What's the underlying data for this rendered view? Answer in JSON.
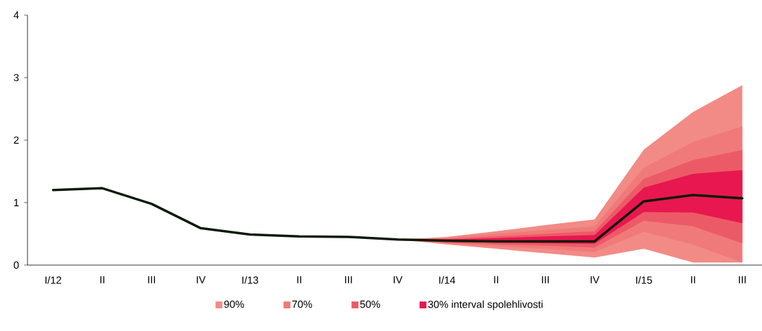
{
  "chart_data": {
    "type": "line",
    "categories": [
      "I/12",
      "II",
      "III",
      "IV",
      "I/13",
      "II",
      "III",
      "IV",
      "I/14",
      "II",
      "III",
      "IV",
      "I/15",
      "II",
      "III"
    ],
    "series": [
      {
        "name": "90%",
        "type": "area",
        "color": "#f28b86",
        "values": [
          null,
          null,
          null,
          null,
          null,
          null,
          null,
          null,
          null,
          null,
          null,
          null,
          null,
          null,
          null
        ],
        "lower": [
          null,
          null,
          null,
          null,
          null,
          null,
          null,
          0.41,
          0.33,
          0.26,
          0.19,
          0.12,
          0.26,
          0.04,
          0.04
        ],
        "upper": [
          null,
          null,
          null,
          null,
          null,
          null,
          null,
          0.41,
          0.45,
          0.54,
          0.64,
          0.73,
          1.85,
          2.45,
          2.88
        ]
      },
      {
        "name": "70%",
        "type": "area",
        "color": "#f07a7a",
        "values": [
          null,
          null,
          null,
          null,
          null,
          null,
          null,
          null,
          null,
          null,
          null,
          null,
          null,
          null,
          null
        ],
        "lower": [
          null,
          null,
          null,
          null,
          null,
          null,
          null,
          0.41,
          0.35,
          0.3,
          0.26,
          0.21,
          0.53,
          0.33,
          0.04
        ],
        "upper": [
          null,
          null,
          null,
          null,
          null,
          null,
          null,
          0.41,
          0.43,
          0.5,
          0.56,
          0.62,
          1.56,
          1.97,
          2.22
        ]
      },
      {
        "name": "50%",
        "type": "area",
        "color": "#ec5a67",
        "values": [
          null,
          null,
          null,
          null,
          null,
          null,
          null,
          null,
          null,
          null,
          null,
          null,
          null,
          null,
          null
        ],
        "lower": [
          null,
          null,
          null,
          null,
          null,
          null,
          null,
          0.41,
          0.36,
          0.33,
          0.31,
          0.28,
          0.71,
          0.62,
          0.35
        ],
        "upper": [
          null,
          null,
          null,
          null,
          null,
          null,
          null,
          0.41,
          0.42,
          0.46,
          0.5,
          0.54,
          1.38,
          1.68,
          1.84
        ]
      },
      {
        "name": "30% interval spolehlivosti",
        "type": "area",
        "color": "#e8174f",
        "values": [
          null,
          null,
          null,
          null,
          null,
          null,
          null,
          null,
          null,
          null,
          null,
          null,
          null,
          null,
          null
        ],
        "lower": [
          null,
          null,
          null,
          null,
          null,
          null,
          null,
          0.41,
          0.37,
          0.36,
          0.35,
          0.34,
          0.85,
          0.84,
          0.67
        ],
        "upper": [
          null,
          null,
          null,
          null,
          null,
          null,
          null,
          0.41,
          0.41,
          0.43,
          0.46,
          0.48,
          1.24,
          1.46,
          1.52
        ]
      },
      {
        "type": "line",
        "color": "#0a1a08",
        "values": [
          1.2,
          1.23,
          0.98,
          0.59,
          0.49,
          0.46,
          0.45,
          0.41,
          0.39,
          0.38,
          0.38,
          0.38,
          1.02,
          1.12,
          1.07
        ]
      }
    ],
    "ylim": [
      0,
      4
    ],
    "yticks": [
      0,
      1,
      2,
      3,
      4
    ],
    "legend": "bottom"
  }
}
